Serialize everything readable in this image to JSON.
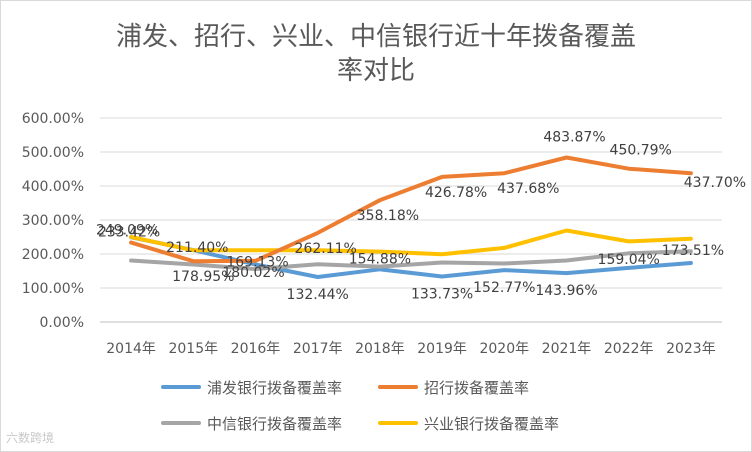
{
  "chart_data": {
    "type": "line",
    "title_line1": "浦发、招行、兴业、中信银行近十年拨备覆盖",
    "title_line2": "率对比",
    "categories": [
      "2014年",
      "2015年",
      "2016年",
      "2017年",
      "2018年",
      "2019年",
      "2020年",
      "2021年",
      "2022年",
      "2023年"
    ],
    "yticks": [
      "0.00%",
      "100.00%",
      "200.00%",
      "300.00%",
      "400.00%",
      "500.00%",
      "600.00%"
    ],
    "ylim": [
      0,
      600
    ],
    "grid": true,
    "legend_position": "bottom",
    "series": [
      {
        "name": "浦发银行拨备覆盖率",
        "color": "#5b9bd5",
        "values": [
          249.09,
          211.4,
          169.13,
          132.44,
          154.88,
          133.73,
          152.77,
          143.96,
          159.04,
          173.51
        ],
        "labels": [
          "249.09%",
          "211.40%",
          "169.13%",
          "132.44%",
          "154.88%",
          "133.73%",
          "152.77%",
          "143.96%",
          "159.04%",
          "173.51%"
        ]
      },
      {
        "name": "招行拨备覆盖率",
        "color": "#ed7d31",
        "values": [
          233.42,
          178.95,
          180.02,
          262.11,
          358.18,
          426.78,
          437.68,
          483.87,
          450.79,
          437.7
        ],
        "labels": [
          "233.42%",
          "178.95%",
          "180.02%",
          "262.11%",
          "358.18%",
          "426.78%",
          "437.68%",
          "483.87%",
          "450.79%",
          "437.70%"
        ]
      },
      {
        "name": "中信银行拨备覆盖率",
        "color": "#a5a5a5",
        "values": [
          181,
          169,
          156,
          170,
          163,
          175,
          172,
          181,
          202,
          208
        ]
      },
      {
        "name": "兴业银行拨备覆盖率",
        "color": "#ffc000",
        "values": [
          250,
          211,
          211,
          211,
          207,
          199,
          218,
          269,
          237,
          245
        ]
      }
    ]
  },
  "watermark": "六数跨境"
}
